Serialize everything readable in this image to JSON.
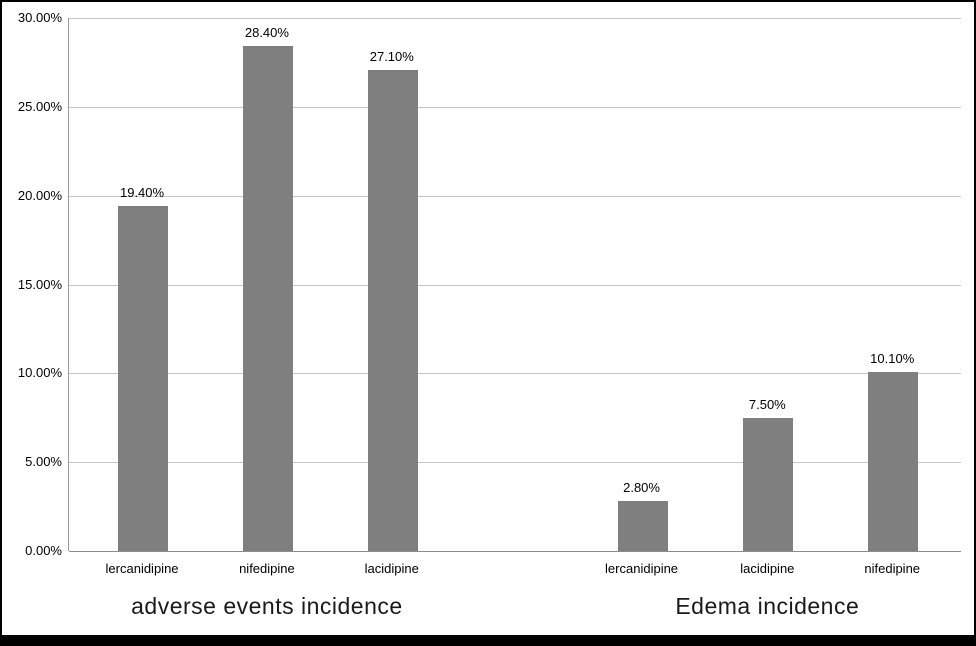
{
  "chart_data": {
    "type": "bar",
    "bar_color": "#7f7f7f",
    "grid": true,
    "legend": "none",
    "ylim": [
      0,
      30
    ],
    "ytick_step": 5,
    "ytick_labels": [
      "0.00%",
      "5.00%",
      "10.00%",
      "15.00%",
      "20.00%",
      "25.00%",
      "30.00%"
    ],
    "groups": [
      {
        "label": "adverse events incidence",
        "categories": [
          "lercanidipine",
          "nifedipine",
          "lacidipine"
        ],
        "values": [
          19.4,
          28.4,
          27.1
        ],
        "value_labels": [
          "19.40%",
          "28.40%",
          "27.10%"
        ]
      },
      {
        "label": "Edema incidence",
        "categories": [
          "lercanidipine",
          "lacidipine",
          "nifedipine"
        ],
        "values": [
          2.8,
          7.5,
          10.1
        ],
        "value_labels": [
          "2.80%",
          "7.50%",
          "10.10%"
        ]
      }
    ]
  }
}
